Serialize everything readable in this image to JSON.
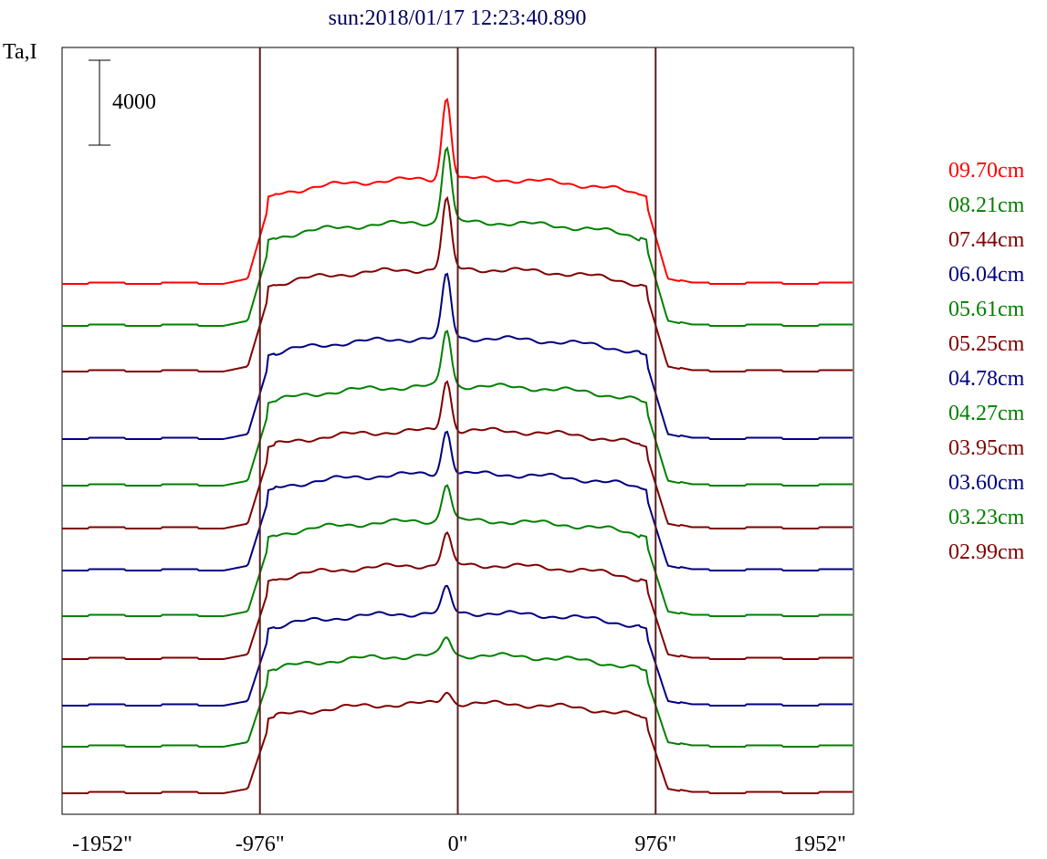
{
  "chart_data": {
    "type": "line",
    "title": "sun:2018/01/17 12:23:40.890",
    "ylabel": "Ta,I",
    "scale_bar_label": "4000",
    "x_ticks": [
      {
        "value": -1952,
        "label": "-1952\""
      },
      {
        "value": -976,
        "label": "-976\""
      },
      {
        "value": 0,
        "label": "0\""
      },
      {
        "value": 976,
        "label": "976\""
      },
      {
        "value": 1952,
        "label": "1952\""
      }
    ],
    "vertical_reference_lines": [
      -976,
      0,
      976
    ],
    "xlim": [
      -1952,
      1952
    ],
    "grid": false,
    "legend_placement": "right",
    "series": [
      {
        "name": "09.70cm",
        "color": "#ff0000"
      },
      {
        "name": "08.21cm",
        "color": "#008000"
      },
      {
        "name": "07.44cm",
        "color": "#800000"
      },
      {
        "name": "06.04cm",
        "color": "#000080"
      },
      {
        "name": "05.61cm",
        "color": "#008000"
      },
      {
        "name": "05.25cm",
        "color": "#800000"
      },
      {
        "name": "04.78cm",
        "color": "#000080"
      },
      {
        "name": "04.27cm",
        "color": "#008000"
      },
      {
        "name": "03.95cm",
        "color": "#800000"
      },
      {
        "name": "03.60cm",
        "color": "#000080"
      },
      {
        "name": "03.23cm",
        "color": "#008000"
      },
      {
        "name": "02.99cm",
        "color": "#800000"
      }
    ],
    "extra_unlabeled_traces": [
      {
        "color": "#800000"
      },
      {
        "color": "#000080"
      },
      {
        "color": "#008000"
      },
      {
        "color": "#800000"
      }
    ],
    "title_color": "#000060",
    "reference_line_color": "#5a2020"
  }
}
